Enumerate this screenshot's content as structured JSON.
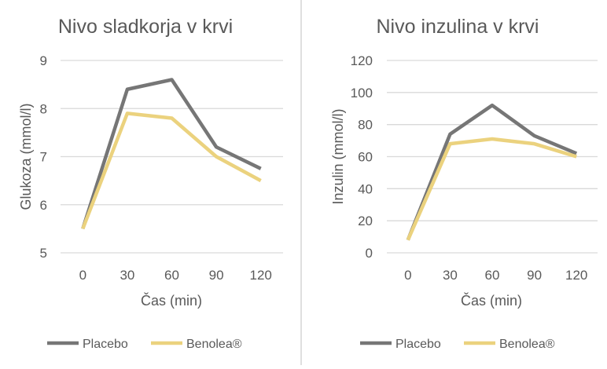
{
  "colors": {
    "placebo": "#767676",
    "benolea": "#EBD27E",
    "grid": "#D9D9D9",
    "divider": "#BFBFBF"
  },
  "chart_data": [
    {
      "type": "line",
      "title": "Nivo sladkorja v krvi",
      "xlabel": "Čas (min)",
      "ylabel": "Glukoza (mmol/l)",
      "categories": [
        "0",
        "30",
        "60",
        "90",
        "120"
      ],
      "ylim": [
        5,
        9
      ],
      "yticks": [
        "5",
        "6",
        "7",
        "8",
        "9"
      ],
      "grid": true,
      "legend": "bottom",
      "series": [
        {
          "name": "Placebo",
          "values": [
            5.5,
            8.4,
            8.6,
            7.2,
            6.75
          ]
        },
        {
          "name": "Benolea®",
          "values": [
            5.5,
            7.9,
            7.8,
            7.0,
            6.5
          ]
        }
      ]
    },
    {
      "type": "line",
      "title": "Nivo inzulina v krvi",
      "xlabel": "Čas (min)",
      "ylabel": "Inzulin (mmol/l)",
      "categories": [
        "0",
        "30",
        "60",
        "90",
        "120"
      ],
      "ylim": [
        0,
        120
      ],
      "yticks": [
        "0",
        "20",
        "40",
        "60",
        "80",
        "100",
        "120"
      ],
      "grid": true,
      "legend": "bottom",
      "series": [
        {
          "name": "Placebo",
          "values": [
            8,
            74,
            92,
            73,
            62
          ]
        },
        {
          "name": "Benolea®",
          "values": [
            8,
            68,
            71,
            68,
            60
          ]
        }
      ]
    }
  ]
}
